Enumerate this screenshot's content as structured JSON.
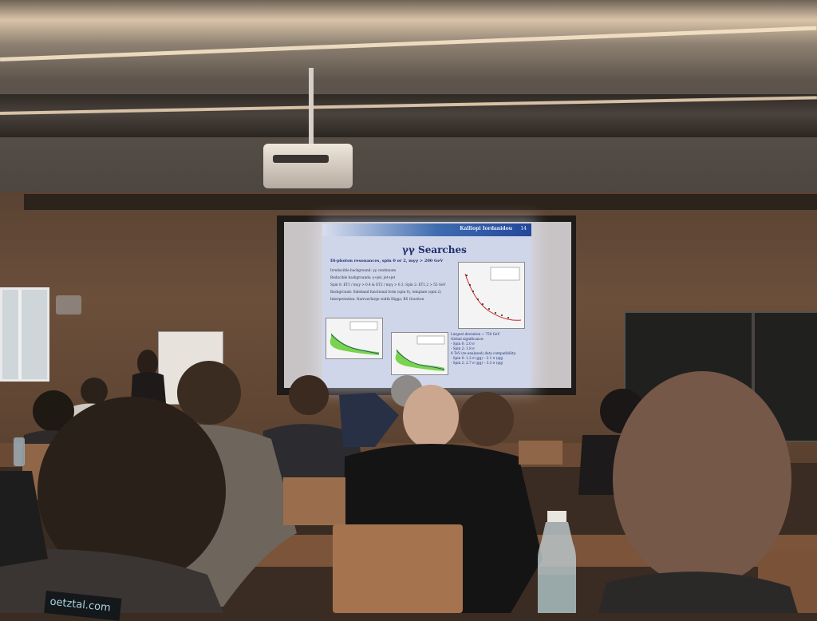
{
  "scene": "Conference lecture room with attendees watching a projected slide",
  "slide": {
    "author": "Kalliopi Iordanidou",
    "page_number": "14",
    "title": "γγ Searches",
    "lead": "Di-photon resonances, spin 0 or 2, mγγ > 200 GeV",
    "bullets": [
      "Irreducible background: γγ continuum",
      "Reducible backgrounds: γ+jet, jet+jet",
      "Spin 0: ET1 / mγγ > 0.4 & ET2 / mγγ > 0.3, Spin 2: ET1,2 > 55 GeV",
      "Background: Sideband functional form (spin 0), template (spin 2)",
      "Interpretation: Narrow/large width Higgs; RS Graviton"
    ],
    "notes": [
      "Largest deviation ~ 750 GeV",
      "Global significance:",
      "- Spin 0: 2.0 σ",
      "- Spin 2: 1.8 σ",
      "8 TeV (re-analysed) data compatibility:",
      "- Spin 0: 1.2 σ (gg) – 2.1 σ (qq)",
      "- Spin 2: 2.7 σ (gg) – 3.3 σ (qq)"
    ]
  },
  "badge_text": "oetztal.com",
  "colors": {
    "slide_background": "#cfd6ea",
    "slide_header": "#23479a",
    "slide_title": "#1d2e6e",
    "wall_wood": "#6b4f3b"
  }
}
